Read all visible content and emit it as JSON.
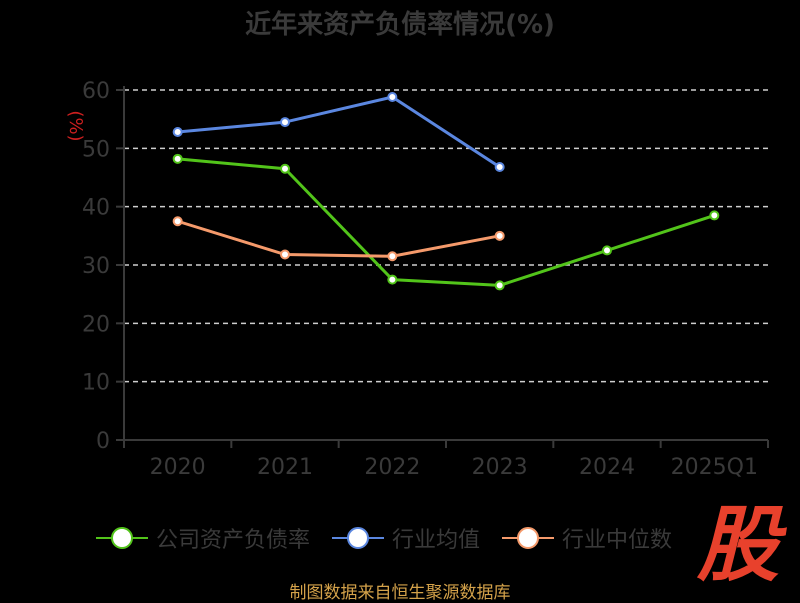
{
  "title": "近年来资产负债率情况(%)",
  "source": "制图数据来自恒生聚源数据库",
  "logo_text": "股",
  "colors": {
    "company": "#52c41a",
    "industry_avg": "#5b87e0",
    "industry_median": "#f59a6b",
    "axis": "#3a3a3a",
    "grid": "#cfcfcf",
    "unit": "#cc1f1f"
  },
  "chart_data": {
    "type": "line",
    "title": "近年来资产负债率情况(%)",
    "ylabel": "(%)",
    "xlabel": "",
    "ylim": [
      0,
      60
    ],
    "yticks": [
      0,
      10,
      20,
      30,
      40,
      50,
      60
    ],
    "categories": [
      "2020",
      "2021",
      "2022",
      "2023",
      "2024",
      "2025Q1"
    ],
    "grid": true,
    "legend_position": "bottom",
    "series": [
      {
        "name": "公司资产负债率",
        "key": "company",
        "values": [
          48.2,
          46.5,
          27.5,
          26.5,
          32.5,
          38.5
        ]
      },
      {
        "name": "行业均值",
        "key": "industry_avg",
        "values": [
          52.8,
          54.5,
          58.8,
          46.8,
          null,
          null
        ]
      },
      {
        "name": "行业中位数",
        "key": "industry_median",
        "values": [
          37.5,
          31.8,
          31.5,
          35.0,
          null,
          null
        ]
      }
    ]
  }
}
